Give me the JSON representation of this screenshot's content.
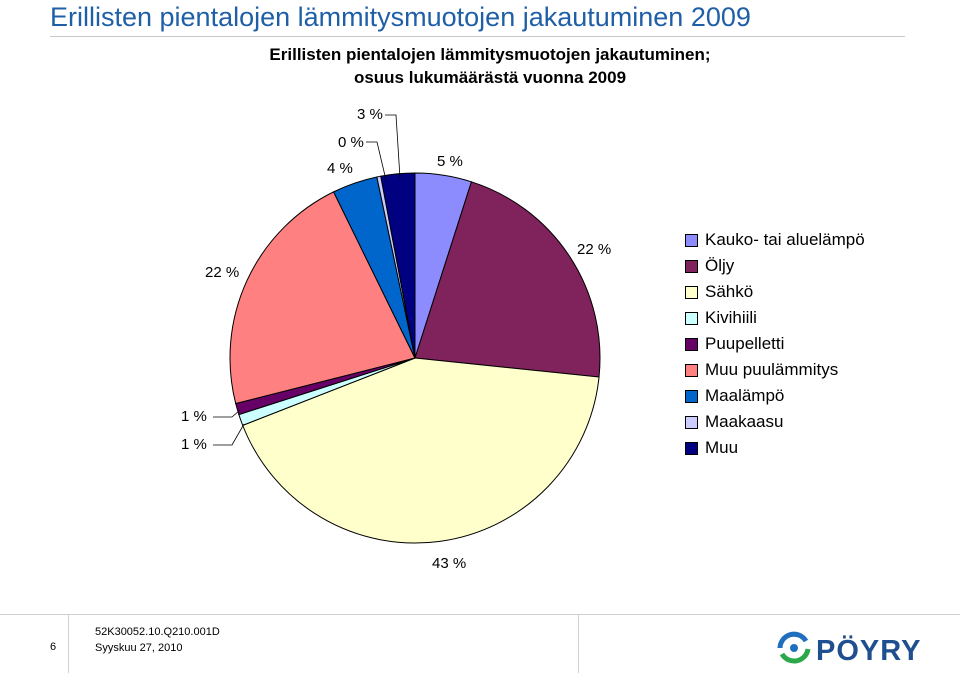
{
  "slide": {
    "title": "Erillisten pientalojen lämmitysmuotojen jakautuminen 2009"
  },
  "footer": {
    "page_number": "6",
    "document_code": "52K30052.10.Q210.001D",
    "date": "Syyskuu 27, 2010",
    "logo_text": "PÖYRY"
  },
  "chart_data": {
    "type": "pie",
    "title_line1": "Erillisten pientalojen lämmitysmuotojen jakautuminen;",
    "title_line2": "osuus lukumäärästä vuonna 2009",
    "legend_position": "right",
    "slices": [
      {
        "name": "Kauko- tai aluelämpö",
        "value": 5,
        "label": "5 %",
        "color": "#8c8cff"
      },
      {
        "name": "Öljy",
        "value": 22,
        "label": "22 %",
        "color": "#80225c"
      },
      {
        "name": "Sähkö",
        "value": 43,
        "label": "43 %",
        "color": "#ffffcc"
      },
      {
        "name": "Kivihiili",
        "value": 1,
        "label": "1 %",
        "color": "#ccffff"
      },
      {
        "name": "Puupelletti",
        "value": 1,
        "label": "1 %",
        "color": "#660066"
      },
      {
        "name": "Muu puulämmitys",
        "value": 22,
        "label": "22 %",
        "color": "#ff8080"
      },
      {
        "name": "Maalämpö",
        "value": 4,
        "label": "4 %",
        "color": "#0066cc"
      },
      {
        "name": "Maakaasu",
        "value": 0,
        "label": "0 %",
        "color": "#ccccff"
      },
      {
        "name": "Muu",
        "value": 3,
        "label": "3 %",
        "color": "#000080"
      }
    ]
  }
}
